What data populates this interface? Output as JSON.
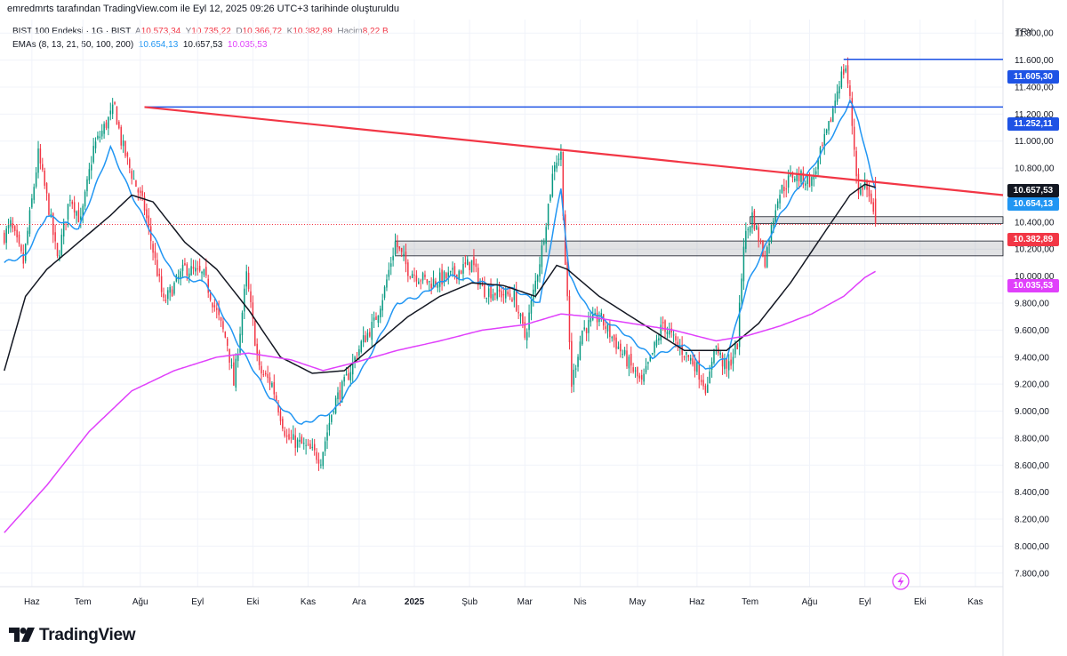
{
  "header": {
    "attribution": "emredmrts tarafından TradingView.com ile Eyl 12, 2025 09:26 UTC+3 tarihinde oluşturuldu"
  },
  "legend": {
    "symbol": "BIST 100 Endeksi · 1G · BIST",
    "o_label": "A",
    "o_value": "10.573,34",
    "h_label": "Y",
    "h_value": "10.735,22",
    "l_label": "D",
    "l_value": "10.366,72",
    "c_label": "K",
    "c_value": "10.382,89",
    "vol_label": "Hacim",
    "vol_value": "8,22 B",
    "ema_label": "EMAs (8, 13, 21, 50, 100, 200)",
    "ema_v1": "10.654,13",
    "ema_v2": "10.657,53",
    "ema_v3": "10.035,53"
  },
  "currency": "TRY",
  "price_tags": {
    "resistance_high": "11.605,30",
    "resistance_mid": "11.252,11",
    "ema_black": "10.657,53",
    "ema_blue": "10.654,13",
    "last_price": "10.382,89",
    "ema_magenta": "10.035,53"
  },
  "footer": {
    "brand": "TradingView"
  },
  "colors": {
    "up": "#089981",
    "down": "#f23645",
    "ema_fast": "#2196f3",
    "ema_mid": "#131722",
    "ema_slow": "#e040fb",
    "trend": "#f23645",
    "hline": "#1e53e5"
  },
  "chart_data": {
    "type": "candlestick",
    "title": "BIST 100 Endeksi · 1G · BIST",
    "ylim": [
      7700,
      11900
    ],
    "y_ticks": [
      "7.800,00",
      "8.000,00",
      "8.200,00",
      "8.400,00",
      "8.600,00",
      "8.800,00",
      "9.000,00",
      "9.200,00",
      "9.400,00",
      "9.600,00",
      "9.800,00",
      "10.000,00",
      "10.200,00",
      "10.400,00",
      "10.600,00",
      "10.800,00",
      "11.000,00",
      "11.200,00",
      "11.400,00",
      "11.600,00",
      "11.800,00"
    ],
    "y_tick_values": [
      7800,
      8000,
      8200,
      8400,
      8600,
      8800,
      9000,
      9200,
      9400,
      9600,
      9800,
      10000,
      10200,
      10400,
      10600,
      10800,
      11000,
      11200,
      11400,
      11600,
      11800
    ],
    "x_ticks": [
      "Haz",
      "Tem",
      "Ağu",
      "Eyl",
      "Eki",
      "Kas",
      "Ara",
      "2025",
      "Şub",
      "Mar",
      "Nis",
      "May",
      "Haz",
      "Tem",
      "Ağu",
      "Eyl",
      "Eki",
      "Kas"
    ],
    "x_tick_days": [
      13,
      37,
      64,
      91,
      117,
      143,
      167,
      193,
      219,
      245,
      271,
      298,
      326,
      351,
      379,
      405,
      431,
      457
    ],
    "price_anchors_close": [
      [
        0,
        10300
      ],
      [
        3,
        10380
      ],
      [
        9,
        10100
      ],
      [
        16,
        10900
      ],
      [
        21,
        10500
      ],
      [
        25,
        10120
      ],
      [
        31,
        10600
      ],
      [
        36,
        10400
      ],
      [
        42,
        10950
      ],
      [
        52,
        11250
      ],
      [
        55,
        11000
      ],
      [
        59,
        10800
      ],
      [
        66,
        10500
      ],
      [
        75,
        9800
      ],
      [
        85,
        10060
      ],
      [
        94,
        10000
      ],
      [
        105,
        9500
      ],
      [
        108,
        9200
      ],
      [
        114,
        10000
      ],
      [
        120,
        9300
      ],
      [
        126,
        9200
      ],
      [
        133,
        8800
      ],
      [
        140,
        8750
      ],
      [
        149,
        8650
      ],
      [
        155,
        9050
      ],
      [
        160,
        9200
      ],
      [
        168,
        9500
      ],
      [
        174,
        9650
      ],
      [
        179,
        9900
      ],
      [
        184,
        10250
      ],
      [
        190,
        10050
      ],
      [
        200,
        9950
      ],
      [
        210,
        10000
      ],
      [
        220,
        10100
      ],
      [
        225,
        9900
      ],
      [
        240,
        9850
      ],
      [
        245,
        9550
      ],
      [
        253,
        10200
      ],
      [
        259,
        10850
      ],
      [
        262,
        10900
      ],
      [
        264,
        10100
      ],
      [
        267,
        9200
      ],
      [
        272,
        9600
      ],
      [
        280,
        9700
      ],
      [
        290,
        9450
      ],
      [
        300,
        9200
      ],
      [
        310,
        9650
      ],
      [
        316,
        9500
      ],
      [
        325,
        9350
      ],
      [
        331,
        9150
      ],
      [
        334,
        9500
      ],
      [
        340,
        9300
      ],
      [
        345,
        9500
      ],
      [
        348,
        10250
      ],
      [
        352,
        10450
      ],
      [
        358,
        10120
      ],
      [
        364,
        10600
      ],
      [
        371,
        10750
      ],
      [
        380,
        10700
      ],
      [
        388,
        11100
      ],
      [
        393,
        11450
      ],
      [
        396,
        11550
      ],
      [
        398,
        11300
      ],
      [
        402,
        10600
      ],
      [
        405,
        10700
      ],
      [
        408,
        10500
      ],
      [
        410,
        10383
      ]
    ],
    "x_range_days": [
      -2,
      470
    ],
    "trendline": [
      [
        66,
        11252
      ],
      [
        470,
        10600
      ]
    ],
    "hlines": [
      {
        "from": 66,
        "to": 470,
        "value": 11252
      },
      {
        "from": 395,
        "to": 470,
        "value": 11605.3
      }
    ],
    "zones": [
      {
        "from": 184,
        "to": 470,
        "low": 10150,
        "high": 10260
      },
      {
        "from": 351,
        "to": 470,
        "low": 10390,
        "high": 10440
      }
    ],
    "last_close": 10382.89,
    "series": [
      {
        "name": "EMA fast",
        "color": "#2196f3",
        "anchors": [
          [
            0,
            10100
          ],
          [
            10,
            10150
          ],
          [
            20,
            10450
          ],
          [
            35,
            10350
          ],
          [
            50,
            10950
          ],
          [
            60,
            10600
          ],
          [
            70,
            10300
          ],
          [
            80,
            10000
          ],
          [
            95,
            9950
          ],
          [
            110,
            9500
          ],
          [
            125,
            9100
          ],
          [
            140,
            8900
          ],
          [
            155,
            9000
          ],
          [
            170,
            9350
          ],
          [
            185,
            9800
          ],
          [
            195,
            9850
          ],
          [
            210,
            10000
          ],
          [
            225,
            9950
          ],
          [
            240,
            9900
          ],
          [
            252,
            9800
          ],
          [
            262,
            10650
          ],
          [
            266,
            10000
          ],
          [
            275,
            9750
          ],
          [
            290,
            9600
          ],
          [
            305,
            9400
          ],
          [
            320,
            9500
          ],
          [
            330,
            9300
          ],
          [
            340,
            9400
          ],
          [
            350,
            9950
          ],
          [
            365,
            10450
          ],
          [
            380,
            10800
          ],
          [
            392,
            11100
          ],
          [
            398,
            11300
          ],
          [
            402,
            11150
          ],
          [
            408,
            10750
          ],
          [
            410,
            10654
          ]
        ]
      },
      {
        "name": "EMA 50",
        "color": "#131722",
        "anchors": [
          [
            0,
            9300
          ],
          [
            10,
            9850
          ],
          [
            20,
            10050
          ],
          [
            35,
            10250
          ],
          [
            50,
            10450
          ],
          [
            60,
            10600
          ],
          [
            70,
            10550
          ],
          [
            85,
            10250
          ],
          [
            100,
            10050
          ],
          [
            115,
            9750
          ],
          [
            130,
            9400
          ],
          [
            145,
            9280
          ],
          [
            160,
            9300
          ],
          [
            175,
            9500
          ],
          [
            190,
            9700
          ],
          [
            205,
            9850
          ],
          [
            220,
            9950
          ],
          [
            235,
            9930
          ],
          [
            250,
            9850
          ],
          [
            260,
            10080
          ],
          [
            265,
            10050
          ],
          [
            280,
            9850
          ],
          [
            300,
            9650
          ],
          [
            320,
            9450
          ],
          [
            340,
            9450
          ],
          [
            355,
            9650
          ],
          [
            370,
            9950
          ],
          [
            385,
            10300
          ],
          [
            398,
            10600
          ],
          [
            405,
            10680
          ],
          [
            410,
            10657
          ]
        ]
      },
      {
        "name": "EMA 200",
        "color": "#e040fb",
        "anchors": [
          [
            0,
            8100
          ],
          [
            20,
            8450
          ],
          [
            40,
            8850
          ],
          [
            60,
            9150
          ],
          [
            80,
            9300
          ],
          [
            100,
            9400
          ],
          [
            115,
            9430
          ],
          [
            135,
            9380
          ],
          [
            150,
            9300
          ],
          [
            165,
            9360
          ],
          [
            185,
            9450
          ],
          [
            205,
            9520
          ],
          [
            225,
            9600
          ],
          [
            245,
            9640
          ],
          [
            262,
            9720
          ],
          [
            275,
            9700
          ],
          [
            295,
            9650
          ],
          [
            315,
            9600
          ],
          [
            335,
            9520
          ],
          [
            350,
            9560
          ],
          [
            365,
            9630
          ],
          [
            380,
            9720
          ],
          [
            395,
            9850
          ],
          [
            405,
            9990
          ],
          [
            410,
            10035
          ]
        ]
      }
    ]
  }
}
